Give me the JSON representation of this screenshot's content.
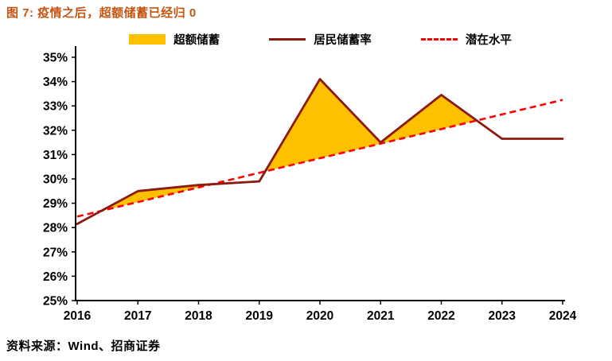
{
  "title": "图 7: 疫情之后，超额储蓄已经归 0",
  "source": "资料来源：Wind、招商证券",
  "colors": {
    "title": "#C45511",
    "axis": "#000000",
    "background": "#FFFFFF"
  },
  "chart_data": {
    "type": "line",
    "title": "图 7: 疫情之后，超额储蓄已经归 0",
    "x": [
      2016,
      2017,
      2018,
      2019,
      2020,
      2021,
      2022,
      2023,
      2024
    ],
    "xticks": [
      "2016",
      "2017",
      "2018",
      "2019",
      "2020",
      "2021",
      "2022",
      "2023",
      "2024"
    ],
    "ylim": [
      25,
      35
    ],
    "yticks": [
      "25%",
      "26%",
      "27%",
      "28%",
      "29%",
      "30%",
      "31%",
      "32%",
      "33%",
      "34%",
      "35%"
    ],
    "grid": false,
    "legend_position": "top-inside",
    "series": [
      {
        "name": "超额储蓄",
        "type": "area-between",
        "between": [
          1,
          2
        ],
        "color": "#FFC000"
      },
      {
        "name": "居民储蓄率",
        "type": "line",
        "style": "solid",
        "color": "#8B1A10",
        "values": [
          28.15,
          29.5,
          29.75,
          29.9,
          34.1,
          31.5,
          33.45,
          31.65,
          31.65
        ]
      },
      {
        "name": "潜在水平",
        "type": "line",
        "style": "dashed",
        "color": "#FF0000",
        "values": [
          28.45,
          29.05,
          29.65,
          30.25,
          30.85,
          31.45,
          32.05,
          32.65,
          33.25
        ]
      }
    ]
  }
}
